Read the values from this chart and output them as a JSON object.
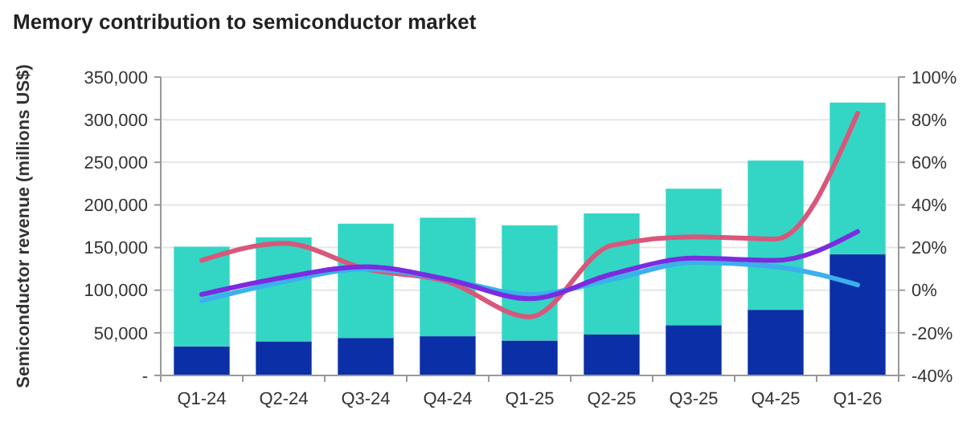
{
  "chart_data": {
    "type": "bar",
    "title": "Memory contribution to semiconductor market",
    "ylabel": "Semiconductor revenue (millions US$)",
    "categories": [
      "Q1-24",
      "Q2-24",
      "Q3-24",
      "Q4-24",
      "Q1-25",
      "Q2-25",
      "Q3-25",
      "Q4-25",
      "Q1-26"
    ],
    "stacked": true,
    "series": [
      {
        "color": "#0b2fa6",
        "values": [
          34000,
          40000,
          44000,
          46000,
          41000,
          48000,
          59000,
          77000,
          142000
        ]
      },
      {
        "color": "#33d6c4",
        "values": [
          117000,
          122000,
          134000,
          139000,
          135000,
          142000,
          160000,
          175000,
          178000
        ]
      },
      {
        "type": "line",
        "axis": "y2",
        "color": "#d9577a",
        "values": [
          14,
          22,
          10,
          4,
          -12.5,
          21,
          25,
          24,
          83
        ]
      },
      {
        "type": "line",
        "axis": "y2",
        "color": "#3bb0ec",
        "values": [
          -5,
          4,
          10,
          5,
          -2,
          5,
          13,
          11,
          2.5
        ]
      },
      {
        "type": "line",
        "axis": "y2",
        "color": "#7b2be0",
        "values": [
          -2,
          6,
          11,
          5,
          -4,
          7.5,
          15,
          14,
          27.5
        ]
      }
    ],
    "ylim": [
      0,
      350000
    ],
    "yticks": [
      {
        "value": 0,
        "label": "-"
      },
      {
        "value": 50000,
        "label": "50,000"
      },
      {
        "value": 100000,
        "label": "100,000"
      },
      {
        "value": 150000,
        "label": "150,000"
      },
      {
        "value": 200000,
        "label": "200,000"
      },
      {
        "value": 250000,
        "label": "250,000"
      },
      {
        "value": 300000,
        "label": "300,000"
      },
      {
        "value": 350000,
        "label": "350,000"
      }
    ],
    "y2lim": [
      -40,
      100
    ],
    "y2ticks": [
      {
        "value": -40,
        "label": "-40%"
      },
      {
        "value": -20,
        "label": "-20%"
      },
      {
        "value": 0,
        "label": "0%"
      },
      {
        "value": 20,
        "label": "20%"
      },
      {
        "value": 40,
        "label": "40%"
      },
      {
        "value": 60,
        "label": "60%"
      },
      {
        "value": 80,
        "label": "80%"
      },
      {
        "value": 100,
        "label": "100%"
      }
    ],
    "grid": "y"
  }
}
